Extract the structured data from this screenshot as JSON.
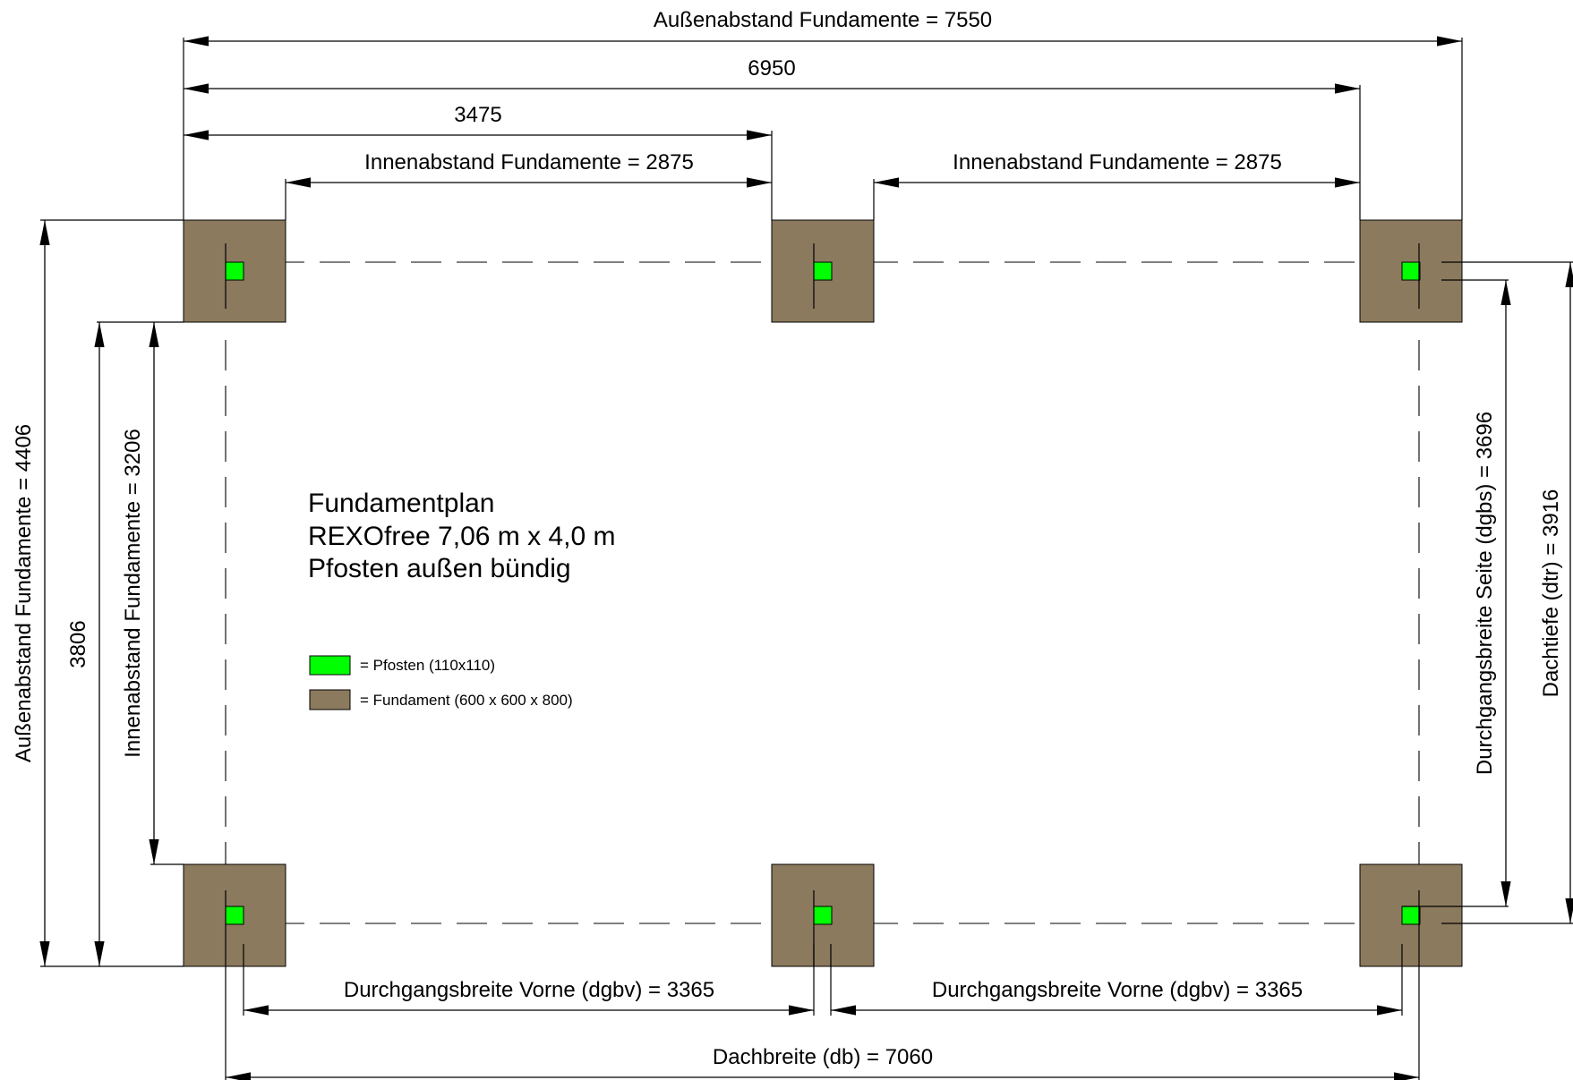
{
  "plan": {
    "title_lines": [
      "Fundamentplan",
      "REXOfree 7,06 m x 4,0 m",
      "Pfosten außen bündig"
    ]
  },
  "legend": {
    "post": "= Pfosten (110x110)",
    "foundation": "= Fundament (600 x 600 x 800)"
  },
  "dimensions": {
    "top_outer": "Außenabstand Fundamente = 7550",
    "top_mid": "6950",
    "top_half": "3475",
    "top_inner_left": "Innenabstand Fundamente = 2875",
    "top_inner_right": "Innenabstand Fundamente = 2875",
    "left_outer": "Außenabstand Fundamente = 4406",
    "left_mid": "3806",
    "left_inner": "Innenabstand Fundamente = 3206",
    "right_side_passage": "Durchgangsbreite Seite (dgbs) = 3696",
    "right_roof_depth": "Dachtiefe (dtr) = 3916",
    "bottom_front_left": "Durchgangsbreite Vorne (dgbv) = 3365",
    "bottom_front_right": "Durchgangsbreite Vorne (dgbv) = 3365",
    "bottom_roof_width": "Dachbreite (db) = 7060"
  },
  "colors": {
    "foundation": "#8b7a5e",
    "post": "#00ff00",
    "line": "#000000"
  }
}
